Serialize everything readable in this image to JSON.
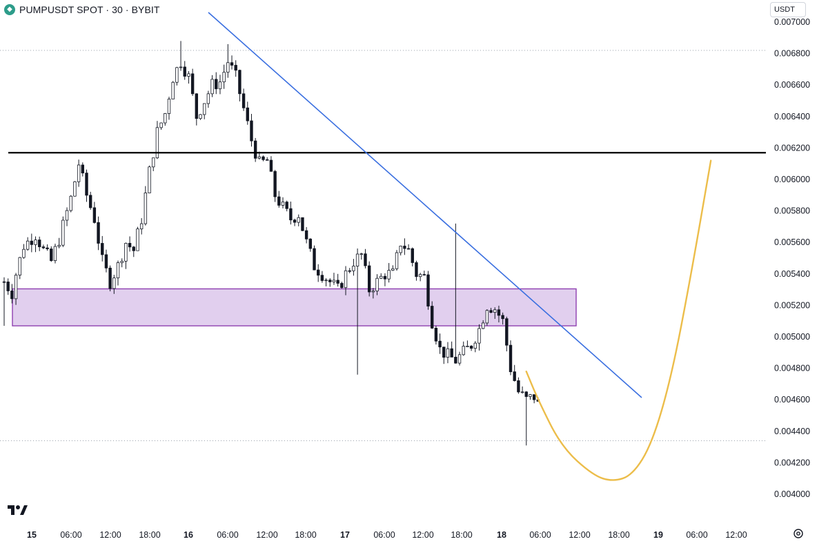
{
  "header": {
    "title": "PUMPUSDT SPOT · 30 · BYBIT",
    "logo_icon": "bybit-diamond-icon"
  },
  "currency_selector": {
    "label": "USDT"
  },
  "footer": {
    "settings_icon": "gear-icon",
    "brand_icon": "tradingview-logo-icon"
  },
  "chart_data": {
    "type": "candlestick",
    "symbol": "PUMPUSDT",
    "market": "SPOT",
    "interval": "30",
    "exchange": "BYBIT",
    "y_axis": {
      "range": [
        0.0039,
        0.00705
      ],
      "ticks": [
        "0.007000",
        "0.006800",
        "0.006600",
        "0.006400",
        "0.006200",
        "0.006000",
        "0.005800",
        "0.005600",
        "0.005400",
        "0.005200",
        "0.005000",
        "0.004800",
        "0.004600",
        "0.004400",
        "0.004200",
        "0.004000"
      ]
    },
    "x_axis": {
      "ticks": [
        {
          "label": "15",
          "bold": true
        },
        {
          "label": "06:00"
        },
        {
          "label": "12:00"
        },
        {
          "label": "18:00"
        },
        {
          "label": "16",
          "bold": true
        },
        {
          "label": "06:00"
        },
        {
          "label": "12:00"
        },
        {
          "label": "18:00"
        },
        {
          "label": "17",
          "bold": true
        },
        {
          "label": "06:00"
        },
        {
          "label": "12:00"
        },
        {
          "label": "18:00"
        },
        {
          "label": "18",
          "bold": true
        },
        {
          "label": "06:00"
        },
        {
          "label": "12:00"
        },
        {
          "label": "18:00"
        },
        {
          "label": "19",
          "bold": true
        },
        {
          "label": "06:00"
        },
        {
          "label": "12:00"
        }
      ]
    },
    "price_path": [
      [
        0,
        0.00535
      ],
      [
        2,
        0.00528
      ],
      [
        3,
        0.0054
      ],
      [
        5,
        0.00558
      ],
      [
        8,
        0.00565
      ],
      [
        10,
        0.00555
      ],
      [
        12,
        0.00548
      ],
      [
        14,
        0.00562
      ],
      [
        17,
        0.00588
      ],
      [
        19,
        0.0061
      ],
      [
        21,
        0.0059
      ],
      [
        23,
        0.00575
      ],
      [
        25,
        0.00548
      ],
      [
        27,
        0.00535
      ],
      [
        29,
        0.00545
      ],
      [
        31,
        0.0056
      ],
      [
        33,
        0.00555
      ],
      [
        35,
        0.00575
      ],
      [
        37,
        0.00605
      ],
      [
        39,
        0.0063
      ],
      [
        41,
        0.00642
      ],
      [
        43,
        0.00665
      ],
      [
        45,
        0.00675
      ],
      [
        47,
        0.00665
      ],
      [
        49,
        0.0064
      ],
      [
        51,
        0.0065
      ],
      [
        53,
        0.0066
      ],
      [
        55,
        0.00662
      ],
      [
        57,
        0.00675
      ],
      [
        59,
        0.00665
      ],
      [
        61,
        0.00645
      ],
      [
        63,
        0.00625
      ],
      [
        65,
        0.0061
      ],
      [
        67,
        0.00612
      ],
      [
        69,
        0.0059
      ],
      [
        71,
        0.00582
      ],
      [
        73,
        0.00575
      ],
      [
        75,
        0.00578
      ],
      [
        77,
        0.0056
      ],
      [
        79,
        0.00545
      ],
      [
        81,
        0.0054
      ],
      [
        83,
        0.00535
      ],
      [
        85,
        0.0053
      ],
      [
        87,
        0.0054
      ],
      [
        89,
        0.00548
      ],
      [
        91,
        0.00552
      ],
      [
        93,
        0.0053
      ],
      [
        95,
        0.00535
      ],
      [
        97,
        0.0054
      ],
      [
        99,
        0.0054
      ],
      [
        101,
        0.0056
      ],
      [
        103,
        0.00555
      ],
      [
        105,
        0.0054
      ],
      [
        107,
        0.00538
      ],
      [
        109,
        0.0051
      ],
      [
        111,
        0.00492
      ],
      [
        113,
        0.00488
      ],
      [
        115,
        0.00485
      ],
      [
        117,
        0.0049
      ],
      [
        119,
        0.00495
      ],
      [
        121,
        0.00505
      ],
      [
        123,
        0.0052
      ],
      [
        125,
        0.00518
      ],
      [
        127,
        0.0051
      ],
      [
        129,
        0.0048
      ],
      [
        131,
        0.00465
      ],
      [
        133,
        0.0046
      ],
      [
        135,
        0.00462
      ],
      [
        136,
        0.00457
      ]
    ],
    "wick_extremes": [
      {
        "x": 45,
        "high": 0.00688
      },
      {
        "x": 57,
        "high": 0.00686
      },
      {
        "x": 115,
        "high": 0.00572
      },
      {
        "x": 90,
        "low": 0.00476
      },
      {
        "x": 133,
        "low": 0.00431
      },
      {
        "x": 0,
        "low": 0.00507
      }
    ],
    "annotations": {
      "horizontal_levels": [
        0.00682,
        0.00434
      ],
      "resistance_line": {
        "price": 0.00617,
        "color": "#000000"
      },
      "demand_zone": {
        "top": 0.005305,
        "bottom": 0.00507,
        "color": "#e1cfee",
        "border": "#8e3fb0"
      },
      "trendline": {
        "from": {
          "x": 50,
          "price": 0.00692
        },
        "to": {
          "x": 162,
          "price": 0.00461
        },
        "color": "#3a6fe0"
      },
      "projection_curve": {
        "color": "#ecbd4a",
        "points": [
          [
            133,
            0.00478
          ],
          [
            136,
            0.0046
          ],
          [
            142,
            0.0043
          ],
          [
            150,
            0.00412
          ],
          [
            155,
            0.00408
          ],
          [
            160,
            0.00412
          ],
          [
            165,
            0.00432
          ],
          [
            170,
            0.00475
          ],
          [
            175,
            0.0054
          ],
          [
            180,
            0.00612
          ]
        ]
      }
    }
  }
}
